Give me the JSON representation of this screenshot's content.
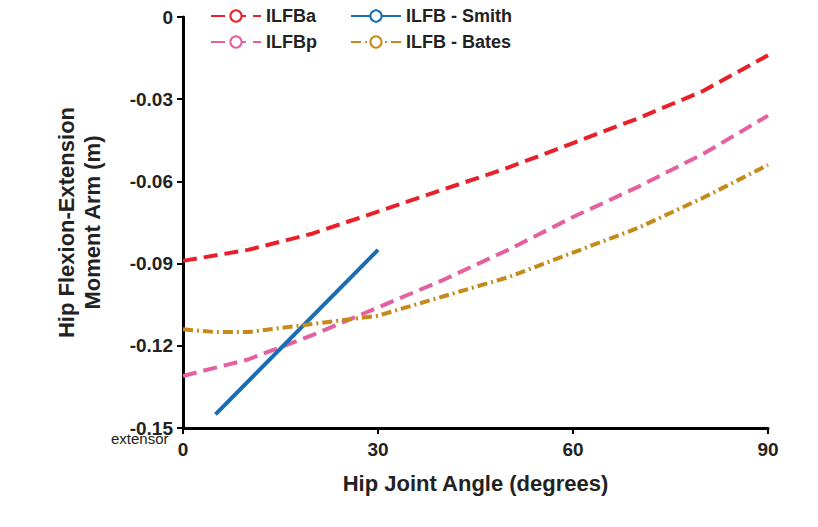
{
  "chart_data": {
    "type": "line",
    "xlabel": "Hip Joint Angle (degrees)",
    "ylabel": "Hip Flexion-Extension Moment Arm (m)",
    "annotation": "extensor",
    "xlim": [
      0,
      90
    ],
    "xticks": [
      0,
      30,
      60,
      90
    ],
    "ylim": [
      -0.15,
      0
    ],
    "yticks": [
      -0.15,
      -0.12,
      -0.09,
      -0.06,
      -0.03,
      0
    ],
    "grid": false,
    "legend": "upper left",
    "series": [
      {
        "name": "ILFBa",
        "color": "#e8202a",
        "line_style": "dashed",
        "x": [
          0,
          10,
          20,
          30,
          40,
          50,
          60,
          70,
          80,
          90
        ],
        "values": [
          -0.089,
          -0.085,
          -0.079,
          -0.071,
          -0.063,
          -0.055,
          -0.046,
          -0.037,
          -0.027,
          -0.014
        ]
      },
      {
        "name": "ILFBp",
        "color": "#e4609f",
        "line_style": "dashed",
        "x": [
          0,
          10,
          20,
          30,
          40,
          50,
          60,
          70,
          80,
          90
        ],
        "values": [
          -0.131,
          -0.125,
          -0.116,
          -0.106,
          -0.096,
          -0.085,
          -0.073,
          -0.062,
          -0.05,
          -0.036
        ]
      },
      {
        "name": "ILFB - Smith",
        "color": "#1a6db5",
        "line_style": "solid",
        "x": [
          5,
          30
        ],
        "values": [
          -0.145,
          -0.085
        ]
      },
      {
        "name": "ILFB - Bates",
        "color": "#c58a1a",
        "line_style": "dashdot",
        "x": [
          0,
          5,
          10,
          20,
          30,
          40,
          50,
          60,
          70,
          80,
          90
        ],
        "values": [
          -0.114,
          -0.115,
          -0.115,
          -0.112,
          -0.109,
          -0.102,
          -0.095,
          -0.086,
          -0.077,
          -0.066,
          -0.054
        ]
      }
    ]
  }
}
